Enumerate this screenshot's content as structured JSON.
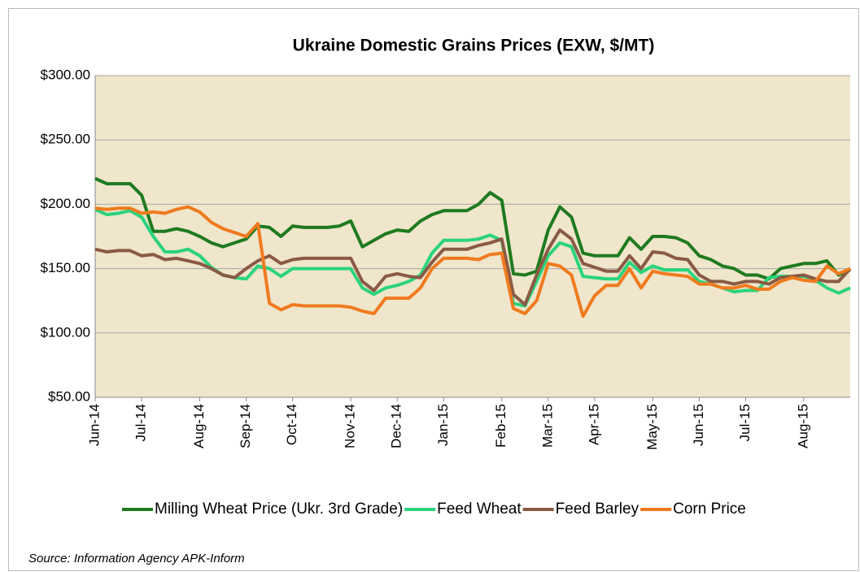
{
  "chart_data": {
    "type": "line",
    "title": "Ukraine Domestic Grains Prices  (EXW, $/MT)",
    "source": "Source:  Information Agency  APK-Inform",
    "categories": [
      "Jun-14",
      null,
      null,
      null,
      "Jul-14",
      null,
      null,
      null,
      null,
      "Aug-14",
      null,
      null,
      null,
      "Sep-14",
      null,
      null,
      null,
      "Oct-14",
      null,
      null,
      null,
      null,
      "Nov-14",
      null,
      null,
      null,
      "Dec-14",
      null,
      null,
      null,
      "Jan-15",
      null,
      null,
      null,
      null,
      "Feb-15",
      null,
      null,
      null,
      "Mar-15",
      null,
      null,
      null,
      "Apr-15",
      null,
      null,
      null,
      null,
      "May-15",
      null,
      null,
      null,
      "Jun-15",
      null,
      null,
      null,
      "Jul-15",
      null,
      null,
      null,
      null,
      "Aug-15",
      null,
      null,
      null,
      null
    ],
    "ylim": [
      50,
      300
    ],
    "yticks": [
      {
        "value": 50,
        "label": "$50.00"
      },
      {
        "value": 100,
        "label": "$100.00"
      },
      {
        "value": 150,
        "label": "$150.00"
      },
      {
        "value": 200,
        "label": "$200.00"
      },
      {
        "value": 250,
        "label": "$250.00"
      },
      {
        "value": 300,
        "label": "$300.00"
      }
    ],
    "grid": true,
    "legend": "bottom",
    "series": [
      {
        "name": "Milling Wheat Price (Ukr. 3rd Grade)",
        "color": "#1f7a1f",
        "values": [
          220,
          216,
          216,
          216,
          207,
          179,
          179,
          181,
          179,
          175,
          170,
          167,
          170,
          173,
          183,
          182,
          175,
          183,
          182,
          182,
          182,
          183,
          187,
          167,
          172,
          177,
          180,
          179,
          187,
          192,
          195,
          195,
          195,
          200,
          209,
          203,
          146,
          145,
          148,
          180,
          198,
          190,
          162,
          160,
          160,
          160,
          174,
          165,
          175,
          175,
          174,
          170,
          160,
          157,
          152,
          150,
          145,
          145,
          142,
          150,
          152,
          154,
          154,
          156,
          145,
          149
        ]
      },
      {
        "name": "Feed Wheat",
        "color": "#2bd37c",
        "values": [
          196,
          192,
          193,
          195,
          190,
          175,
          163,
          163,
          165,
          160,
          151,
          145,
          143,
          142,
          152,
          150,
          144,
          150,
          150,
          150,
          150,
          150,
          150,
          135,
          130,
          135,
          137,
          140,
          145,
          162,
          172,
          172,
          172,
          173,
          176,
          172,
          123,
          121,
          140,
          160,
          170,
          167,
          144,
          143,
          142,
          142,
          155,
          147,
          152,
          149,
          149,
          149,
          140,
          138,
          135,
          132,
          133,
          133,
          143,
          144,
          144,
          144,
          141,
          135,
          131,
          135
        ]
      },
      {
        "name": "Feed Barley",
        "color": "#8a5a44",
        "values": [
          165,
          163,
          164,
          164,
          160,
          161,
          157,
          158,
          156,
          154,
          150,
          145,
          143,
          150,
          156,
          160,
          154,
          157,
          158,
          158,
          158,
          158,
          158,
          140,
          133,
          144,
          146,
          144,
          143,
          155,
          165,
          165,
          165,
          168,
          170,
          173,
          130,
          122,
          145,
          165,
          180,
          173,
          154,
          151,
          148,
          148,
          160,
          150,
          163,
          162,
          158,
          157,
          145,
          140,
          140,
          138,
          140,
          140,
          138,
          143,
          144,
          145,
          142,
          140,
          140,
          150
        ]
      },
      {
        "name": "Corn Price",
        "color": "#f07a1e",
        "values": [
          197,
          196,
          197,
          197,
          193,
          194,
          193,
          196,
          198,
          194,
          186,
          181,
          178,
          175,
          185,
          123,
          118,
          122,
          121,
          121,
          121,
          121,
          120,
          117,
          115,
          127,
          127,
          127,
          135,
          150,
          158,
          158,
          158,
          157,
          161,
          162,
          119,
          115,
          125,
          154,
          152,
          145,
          113,
          129,
          137,
          137,
          150,
          135,
          148,
          146,
          145,
          144,
          138,
          138,
          135,
          135,
          137,
          134,
          134,
          140,
          143,
          141,
          140,
          152,
          146,
          150
        ]
      }
    ]
  }
}
